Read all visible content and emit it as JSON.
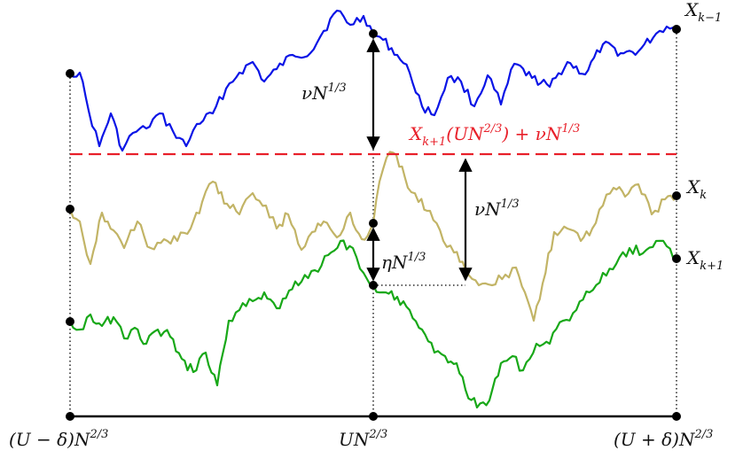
{
  "figure": {
    "colors": {
      "upper_path": "#0a14e6",
      "middle_path": "#c2b466",
      "lower_path": "#18a818",
      "threshold_line": "#e8202a",
      "axis": "#000000",
      "guide": "#000000"
    },
    "labels": {
      "x_km1": {
        "base": "X",
        "sub": "k−1"
      },
      "x_k": {
        "base": "X",
        "sub": "k"
      },
      "x_kp1": {
        "base": "X",
        "sub": "k+1"
      },
      "threshold": {
        "pre": "X",
        "sub": "k+1",
        "mid": "(UN",
        "sup": "2/3",
        "post": ") + νN",
        "sup2": "1/3"
      },
      "gap_upper": {
        "pre": "νN",
        "sup": "1/3"
      },
      "gap_right": {
        "pre": "νN",
        "sup": "1/3"
      },
      "gap_eta": {
        "pre": "ηN",
        "sup": "1/3"
      },
      "tick_left": {
        "pre": "(U − δ)N",
        "sup": "2/3"
      },
      "tick_mid": {
        "pre": "UN",
        "sup": "2/3"
      },
      "tick_right": {
        "pre": "(U + δ)N",
        "sup": "2/3"
      }
    }
  }
}
